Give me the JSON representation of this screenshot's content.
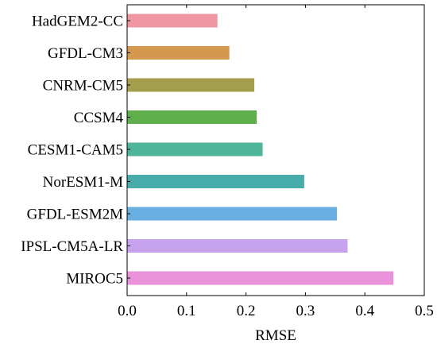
{
  "chart_data": {
    "type": "bar",
    "orientation": "horizontal",
    "categories": [
      "HadGEM2-CC",
      "GFDL-CM3",
      "CNRM-CM5",
      "CCSM4",
      "CESM1-CAM5",
      "NorESM1-M",
      "GFDL-ESM2M",
      "IPSL-CM5A-LR",
      "MIROC5"
    ],
    "values": [
      0.152,
      0.172,
      0.214,
      0.218,
      0.228,
      0.298,
      0.353,
      0.371,
      0.448
    ],
    "colors": [
      "#ee97a3",
      "#d4994e",
      "#a39d4c",
      "#5faf4c",
      "#4fb59a",
      "#48adaa",
      "#69aee0",
      "#c6a3ec",
      "#ea92d9"
    ],
    "title": "",
    "xlabel": "RMSE",
    "ylabel": "",
    "xlim": [
      0.0,
      0.5
    ],
    "xticks": [
      "0.0",
      "0.1",
      "0.2",
      "0.3",
      "0.4",
      "0.5"
    ],
    "grid": false,
    "legend": "none"
  }
}
